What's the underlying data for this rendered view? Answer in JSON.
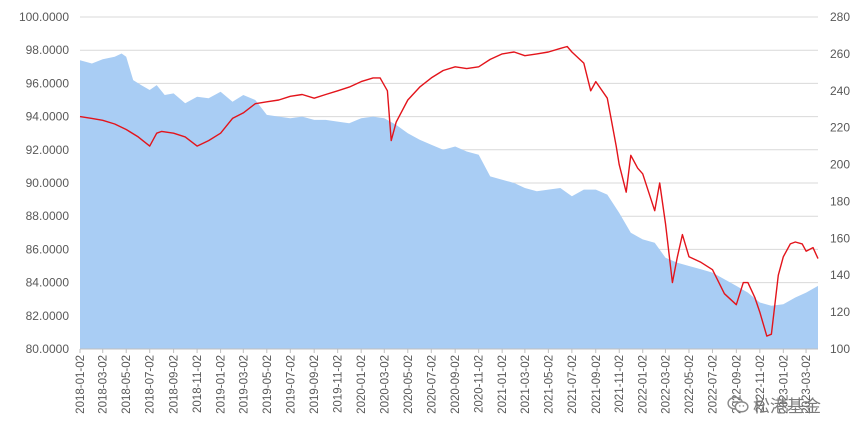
{
  "chart_data": {
    "type": "area",
    "title": "",
    "left_axis": {
      "min": 80,
      "max": 100,
      "step": 2,
      "decimals": 4,
      "ticks": [
        "100.0000",
        "98.0000",
        "96.0000",
        "94.0000",
        "92.0000",
        "90.0000",
        "88.0000",
        "86.0000",
        "84.0000",
        "82.0000",
        "80.0000"
      ]
    },
    "right_axis": {
      "min": 100,
      "max": 280,
      "step": 20,
      "ticks": [
        "280",
        "260",
        "240",
        "220",
        "200",
        "180",
        "160",
        "140",
        "120",
        "100"
      ]
    },
    "x_tick_labels": [
      "2018-01-02",
      "2018-03-02",
      "2018-05-02",
      "2018-07-02",
      "2018-09-02",
      "2018-11-02",
      "2019-01-02",
      "2019-03-02",
      "2019-05-02",
      "2019-07-02",
      "2019-09-02",
      "2019-11-02",
      "2020-01-02",
      "2020-03-02",
      "2020-05-02",
      "2020-07-02",
      "2020-09-02",
      "2020-11-02",
      "2021-01-02",
      "2021-03-02",
      "2021-05-02",
      "2021-07-02",
      "2021-09-02",
      "2021-11-02",
      "2022-01-02",
      "2022-03-02",
      "2022-05-02",
      "2022-07-02",
      "2022-09-02",
      "2022-11-02",
      "2023-01-02",
      "2023-03-02"
    ],
    "grid": "horizontal",
    "legend": "none",
    "series": [
      {
        "axis": "left",
        "style": "area",
        "color": "#a9cdf4",
        "points": [
          [
            "2018-01-02",
            97.4
          ],
          [
            "2018-02-02",
            97.2
          ],
          [
            "2018-03-02",
            97.45
          ],
          [
            "2018-04-02",
            97.6
          ],
          [
            "2018-04-20",
            97.8
          ],
          [
            "2018-05-02",
            97.6
          ],
          [
            "2018-05-20",
            96.2
          ],
          [
            "2018-06-10",
            95.9
          ],
          [
            "2018-07-02",
            95.6
          ],
          [
            "2018-07-20",
            95.9
          ],
          [
            "2018-08-10",
            95.3
          ],
          [
            "2018-09-02",
            95.4
          ],
          [
            "2018-10-02",
            94.8
          ],
          [
            "2018-11-02",
            95.2
          ],
          [
            "2018-12-02",
            95.1
          ],
          [
            "2019-01-02",
            95.5
          ],
          [
            "2019-02-02",
            94.9
          ],
          [
            "2019-03-02",
            95.3
          ],
          [
            "2019-04-02",
            95.0
          ],
          [
            "2019-05-02",
            94.1
          ],
          [
            "2019-06-02",
            94.0
          ],
          [
            "2019-07-02",
            93.9
          ],
          [
            "2019-08-02",
            94.0
          ],
          [
            "2019-09-02",
            93.8
          ],
          [
            "2019-10-02",
            93.8
          ],
          [
            "2019-11-02",
            93.7
          ],
          [
            "2019-12-02",
            93.6
          ],
          [
            "2020-01-02",
            93.9
          ],
          [
            "2020-02-02",
            94.0
          ],
          [
            "2020-03-02",
            93.9
          ],
          [
            "2020-04-02",
            93.5
          ],
          [
            "2020-05-02",
            93.0
          ],
          [
            "2020-06-02",
            92.6
          ],
          [
            "2020-07-02",
            92.3
          ],
          [
            "2020-08-02",
            92.0
          ],
          [
            "2020-09-02",
            92.2
          ],
          [
            "2020-10-02",
            91.9
          ],
          [
            "2020-11-02",
            91.7
          ],
          [
            "2020-12-02",
            90.4
          ],
          [
            "2021-01-02",
            90.2
          ],
          [
            "2021-02-02",
            90.0
          ],
          [
            "2021-03-02",
            89.7
          ],
          [
            "2021-04-02",
            89.5
          ],
          [
            "2021-05-02",
            89.6
          ],
          [
            "2021-06-02",
            89.7
          ],
          [
            "2021-07-02",
            89.2
          ],
          [
            "2021-08-02",
            89.6
          ],
          [
            "2021-09-02",
            89.6
          ],
          [
            "2021-10-02",
            89.3
          ],
          [
            "2021-11-02",
            88.2
          ],
          [
            "2021-12-02",
            87.0
          ],
          [
            "2022-01-02",
            86.6
          ],
          [
            "2022-02-02",
            86.4
          ],
          [
            "2022-03-02",
            85.5
          ],
          [
            "2022-04-02",
            85.2
          ],
          [
            "2022-05-02",
            85.0
          ],
          [
            "2022-06-02",
            84.8
          ],
          [
            "2022-07-02",
            84.6
          ],
          [
            "2022-08-02",
            84.2
          ],
          [
            "2022-09-02",
            83.8
          ],
          [
            "2022-10-02",
            83.4
          ],
          [
            "2022-11-02",
            82.8
          ],
          [
            "2022-12-02",
            82.6
          ],
          [
            "2023-01-02",
            82.7
          ],
          [
            "2023-02-02",
            83.1
          ],
          [
            "2023-03-02",
            83.4
          ],
          [
            "2023-04-02",
            83.8
          ]
        ]
      },
      {
        "axis": "right",
        "style": "line",
        "color": "#e3141b",
        "points": [
          [
            "2018-01-02",
            226
          ],
          [
            "2018-02-02",
            225
          ],
          [
            "2018-03-02",
            224
          ],
          [
            "2018-04-02",
            222
          ],
          [
            "2018-05-02",
            219
          ],
          [
            "2018-06-02",
            215
          ],
          [
            "2018-07-02",
            210
          ],
          [
            "2018-07-20",
            217
          ],
          [
            "2018-08-02",
            218
          ],
          [
            "2018-09-02",
            217
          ],
          [
            "2018-10-02",
            215
          ],
          [
            "2018-11-02",
            210
          ],
          [
            "2018-12-02",
            213
          ],
          [
            "2019-01-02",
            217
          ],
          [
            "2019-02-02",
            225
          ],
          [
            "2019-03-02",
            228
          ],
          [
            "2019-04-02",
            233
          ],
          [
            "2019-05-02",
            234
          ],
          [
            "2019-06-02",
            235
          ],
          [
            "2019-07-02",
            237
          ],
          [
            "2019-08-02",
            238
          ],
          [
            "2019-09-02",
            236
          ],
          [
            "2019-10-02",
            238
          ],
          [
            "2019-11-02",
            240
          ],
          [
            "2019-12-02",
            242
          ],
          [
            "2020-01-02",
            245
          ],
          [
            "2020-02-02",
            247
          ],
          [
            "2020-02-20",
            247
          ],
          [
            "2020-03-10",
            240
          ],
          [
            "2020-03-20",
            213
          ],
          [
            "2020-04-02",
            223
          ],
          [
            "2020-05-02",
            235
          ],
          [
            "2020-06-02",
            242
          ],
          [
            "2020-07-02",
            247
          ],
          [
            "2020-08-02",
            251
          ],
          [
            "2020-09-02",
            253
          ],
          [
            "2020-10-02",
            252
          ],
          [
            "2020-11-02",
            253
          ],
          [
            "2020-12-02",
            257
          ],
          [
            "2021-01-02",
            260
          ],
          [
            "2021-02-02",
            261
          ],
          [
            "2021-03-02",
            259
          ],
          [
            "2021-04-02",
            260
          ],
          [
            "2021-05-02",
            261
          ],
          [
            "2021-06-02",
            263
          ],
          [
            "2021-06-20",
            264
          ],
          [
            "2021-07-02",
            261
          ],
          [
            "2021-08-02",
            255
          ],
          [
            "2021-08-20",
            240
          ],
          [
            "2021-09-02",
            245
          ],
          [
            "2021-10-02",
            236
          ],
          [
            "2021-10-25",
            210
          ],
          [
            "2021-11-02",
            200
          ],
          [
            "2021-11-20",
            185
          ],
          [
            "2021-12-02",
            205
          ],
          [
            "2021-12-20",
            198
          ],
          [
            "2022-01-02",
            195
          ],
          [
            "2022-02-02",
            175
          ],
          [
            "2022-02-15",
            190
          ],
          [
            "2022-03-02",
            168
          ],
          [
            "2022-03-20",
            136
          ],
          [
            "2022-04-02",
            150
          ],
          [
            "2022-04-15",
            162
          ],
          [
            "2022-05-02",
            150
          ],
          [
            "2022-06-02",
            147
          ],
          [
            "2022-07-02",
            143
          ],
          [
            "2022-08-02",
            130
          ],
          [
            "2022-09-02",
            124
          ],
          [
            "2022-09-20",
            136
          ],
          [
            "2022-10-02",
            136
          ],
          [
            "2022-10-20",
            128
          ],
          [
            "2022-11-02",
            120
          ],
          [
            "2022-11-20",
            107
          ],
          [
            "2022-12-02",
            108
          ],
          [
            "2022-12-20",
            140
          ],
          [
            "2023-01-02",
            150
          ],
          [
            "2023-01-20",
            157
          ],
          [
            "2023-02-02",
            158
          ],
          [
            "2023-02-20",
            157
          ],
          [
            "2023-03-02",
            153
          ],
          [
            "2023-03-20",
            155
          ],
          [
            "2023-04-02",
            149
          ]
        ]
      }
    ]
  },
  "watermark": {
    "text": "松港基金",
    "icon": "wechat-icon"
  }
}
